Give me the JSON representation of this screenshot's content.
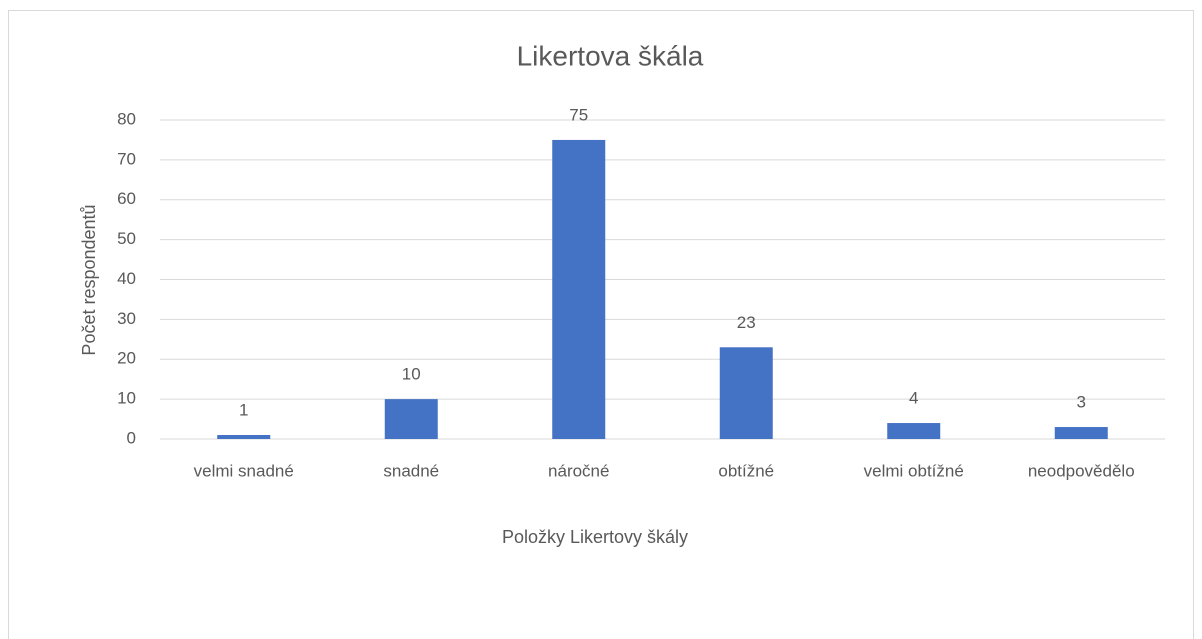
{
  "chart_data": {
    "type": "bar",
    "title": "Likertova škála",
    "x_label": "Položky Likertovy škály",
    "y_label": "Počet respondentů",
    "categories": [
      "velmi snadné",
      "snadné",
      "náročné",
      "obtížné",
      "velmi obtížné",
      "neodpovědělo"
    ],
    "values": [
      1,
      10,
      75,
      23,
      4,
      3
    ],
    "color": "#4472c4",
    "ylim": [
      0,
      80
    ],
    "yticks": [
      0,
      10,
      20,
      30,
      40,
      50,
      60,
      70,
      80
    ],
    "grid": true,
    "data_labels": true
  }
}
